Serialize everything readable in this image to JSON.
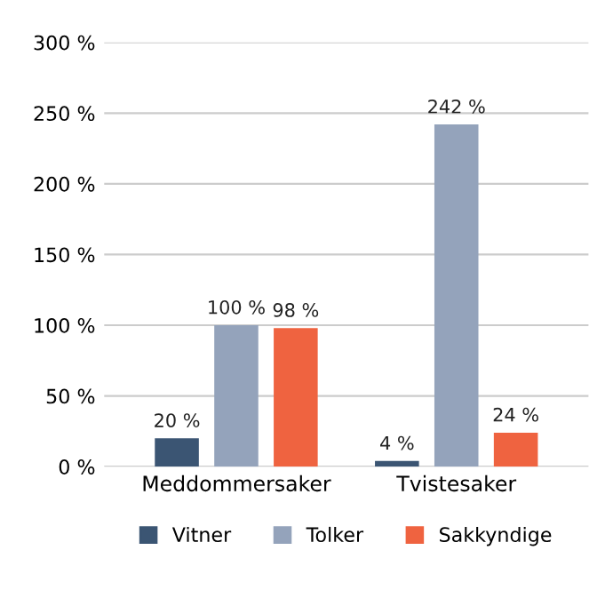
{
  "chart_data": {
    "type": "bar",
    "categories": [
      "Meddommersaker",
      "Tvistesaker"
    ],
    "series": [
      {
        "name": "Vitner",
        "color": "#3b5573",
        "values": [
          20,
          4
        ],
        "value_labels": [
          "20 %",
          "4 %"
        ]
      },
      {
        "name": "Tolker",
        "color": "#94a3bb",
        "values": [
          100,
          242
        ],
        "value_labels": [
          "100 %",
          "242 %"
        ]
      },
      {
        "name": "Sakkyndige",
        "color": "#ef6340",
        "values": [
          98,
          24
        ],
        "value_labels": [
          "98 %",
          "24 %"
        ]
      }
    ],
    "ylim": [
      0,
      300
    ],
    "yticks": [
      {
        "value": 0,
        "label": "0 %"
      },
      {
        "value": 50,
        "label": "50 %"
      },
      {
        "value": 100,
        "label": "100 %"
      },
      {
        "value": 150,
        "label": "150 %"
      },
      {
        "value": 200,
        "label": "200 %"
      },
      {
        "value": 250,
        "label": "250 %"
      },
      {
        "value": 300,
        "label": "300 %"
      }
    ],
    "grid": "y",
    "legend": "bottom"
  }
}
